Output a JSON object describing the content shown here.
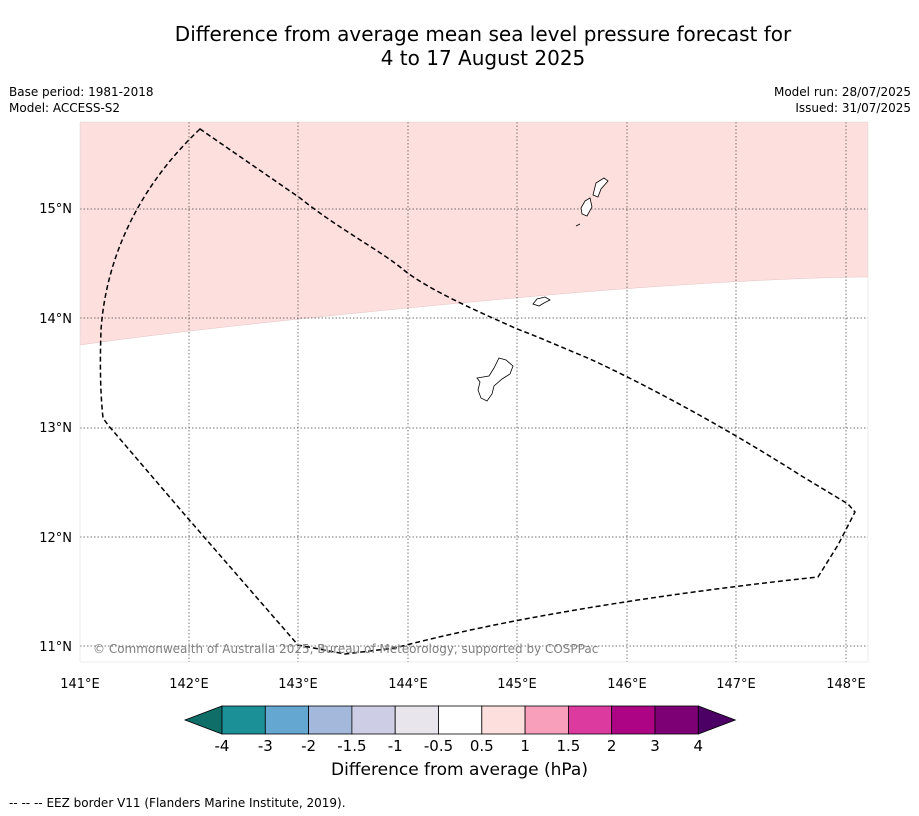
{
  "title": {
    "line1": "Difference from average mean sea level pressure forecast for",
    "line2": "4 to 17 August 2025"
  },
  "meta": {
    "base_period": "Base period: 1981-2018",
    "model": "Model: ACCESS-S2",
    "model_run": "Model run: 28/07/2025",
    "issued": "Issued: 31/07/2025"
  },
  "map": {
    "lat_labels": [
      "15°N",
      "14°N",
      "13°N",
      "12°N",
      "11°N"
    ],
    "lon_labels": [
      "141°E",
      "142°E",
      "143°E",
      "144°E",
      "145°E",
      "146°E",
      "147°E",
      "148°E"
    ],
    "copyright": "© Commonwealth of Australia 2025, Bureau of Meteorology, supported by COSPPac",
    "anomaly_fill_color": "#fddfdd",
    "anomaly_class": "0.5 to 1"
  },
  "colorbar": {
    "label": "Difference from average (hPa)",
    "tick_labels": [
      "-4",
      "-3",
      "-2",
      "-1.5",
      "-1",
      "-0.5",
      "0.5",
      "1",
      "1.5",
      "2",
      "3",
      "4"
    ],
    "colors": [
      "#0f6e68",
      "#1b9097",
      "#64a7d1",
      "#a3b8da",
      "#cdcde6",
      "#e8e6ec",
      "#ffffff",
      "#fddfdd",
      "#f79fbb",
      "#dc3a9e",
      "#ad0485",
      "#7d0074",
      "#4c0066"
    ]
  },
  "footer": {
    "legend_symbol": "--  --  --",
    "legend_text": "EEZ border V11 (Flanders Marine Institute, 2019)."
  }
}
